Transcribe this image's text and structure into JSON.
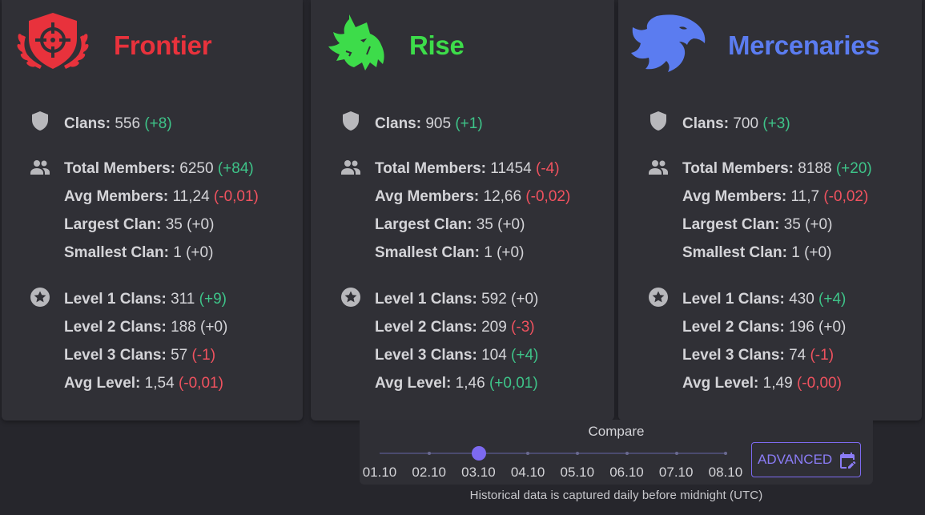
{
  "factions": [
    {
      "name": "Frontier",
      "color": "#e8323c",
      "logo_icon": "crosshair-shield-laurel-icon",
      "clans": {
        "label": "Clans:",
        "value": "556",
        "delta": "(+8)",
        "delta_type": "pos"
      },
      "members": [
        {
          "label": "Total Members:",
          "value": "6250",
          "delta": "(+84)",
          "delta_type": "pos"
        },
        {
          "label": "Avg Members:",
          "value": "11,24",
          "delta": "(-0,01)",
          "delta_type": "neg"
        },
        {
          "label": "Largest Clan:",
          "value": "35",
          "delta": "(+0)",
          "delta_type": "neu"
        },
        {
          "label": "Smallest Clan:",
          "value": "1",
          "delta": "(+0)",
          "delta_type": "neu"
        }
      ],
      "levels": [
        {
          "label": "Level 1 Clans:",
          "value": "311",
          "delta": "(+9)",
          "delta_type": "pos"
        },
        {
          "label": "Level 2 Clans:",
          "value": "188",
          "delta": "(+0)",
          "delta_type": "neu"
        },
        {
          "label": "Level 3 Clans:",
          "value": "57",
          "delta": "(-1)",
          "delta_type": "neg"
        },
        {
          "label": "Avg Level:",
          "value": "1,54",
          "delta": "(-0,01)",
          "delta_type": "neg"
        }
      ]
    },
    {
      "name": "Rise",
      "color": "#3ddc4a",
      "logo_icon": "wolf-head-icon",
      "clans": {
        "label": "Clans:",
        "value": "905",
        "delta": "(+1)",
        "delta_type": "pos"
      },
      "members": [
        {
          "label": "Total Members:",
          "value": "11454",
          "delta": "(-4)",
          "delta_type": "neg"
        },
        {
          "label": "Avg Members:",
          "value": "12,66",
          "delta": "(-0,02)",
          "delta_type": "neg"
        },
        {
          "label": "Largest Clan:",
          "value": "35",
          "delta": "(+0)",
          "delta_type": "neu"
        },
        {
          "label": "Smallest Clan:",
          "value": "1",
          "delta": "(+0)",
          "delta_type": "neu"
        }
      ],
      "levels": [
        {
          "label": "Level 1 Clans:",
          "value": "592",
          "delta": "(+0)",
          "delta_type": "neu"
        },
        {
          "label": "Level 2 Clans:",
          "value": "209",
          "delta": "(-3)",
          "delta_type": "neg"
        },
        {
          "label": "Level 3 Clans:",
          "value": "104",
          "delta": "(+4)",
          "delta_type": "pos"
        },
        {
          "label": "Avg Level:",
          "value": "1,46",
          "delta": "(+0,01)",
          "delta_type": "pos"
        }
      ]
    },
    {
      "name": "Mercenaries",
      "color": "#5b7cf0",
      "logo_icon": "eagle-head-icon",
      "clans": {
        "label": "Clans:",
        "value": "700",
        "delta": "(+3)",
        "delta_type": "pos"
      },
      "members": [
        {
          "label": "Total Members:",
          "value": "8188",
          "delta": "(+20)",
          "delta_type": "pos"
        },
        {
          "label": "Avg Members:",
          "value": "11,7",
          "delta": "(-0,02)",
          "delta_type": "neg"
        },
        {
          "label": "Largest Clan:",
          "value": "35",
          "delta": "(+0)",
          "delta_type": "neu"
        },
        {
          "label": "Smallest Clan:",
          "value": "1",
          "delta": "(+0)",
          "delta_type": "neu"
        }
      ],
      "levels": [
        {
          "label": "Level 1 Clans:",
          "value": "430",
          "delta": "(+4)",
          "delta_type": "pos"
        },
        {
          "label": "Level 2 Clans:",
          "value": "196",
          "delta": "(+0)",
          "delta_type": "neu"
        },
        {
          "label": "Level 3 Clans:",
          "value": "74",
          "delta": "(-1)",
          "delta_type": "neg"
        },
        {
          "label": "Avg Level:",
          "value": "1,49",
          "delta": "(-0,00)",
          "delta_type": "neg"
        }
      ]
    }
  ],
  "section_icons": {
    "clans": "shield-icon",
    "members": "people-icon",
    "levels": "star-circle-icon"
  },
  "colors": {
    "positive": "#3ec489",
    "negative": "#f0525f",
    "accent": "#7d6af0"
  },
  "compare": {
    "title": "Compare",
    "dates": [
      "01.10",
      "02.10",
      "03.10",
      "04.10",
      "05.10",
      "06.10",
      "07.10",
      "08.10"
    ],
    "selected": "03.10",
    "selected_index": 2,
    "advanced_label": "ADVANCED",
    "advanced_icon": "calendar-edit-icon"
  },
  "footnote": "Historical data is captured daily before midnight (UTC)"
}
